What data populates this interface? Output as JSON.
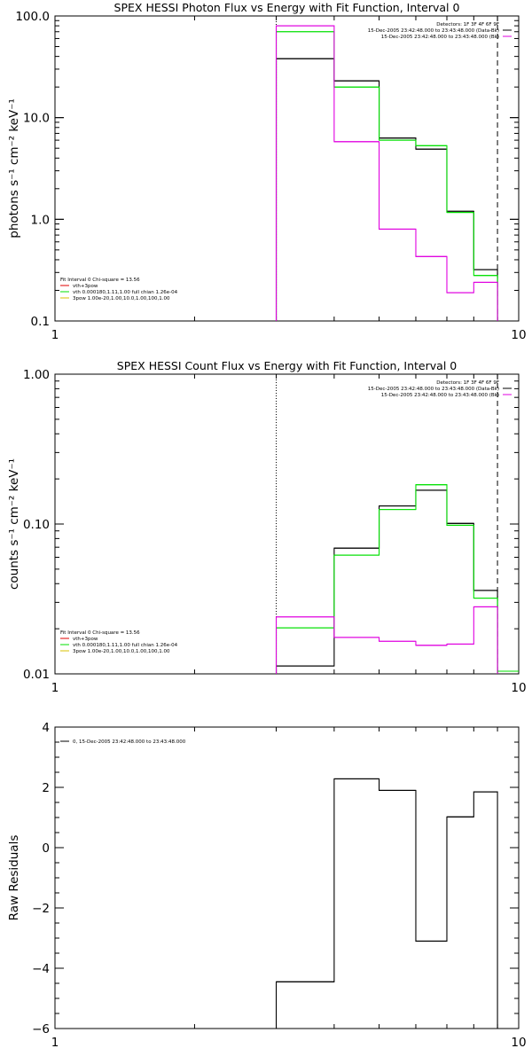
{
  "colors": {
    "data": "#000000",
    "model": "#00e000",
    "bkg": "#e000e0",
    "comp_vth": "#00e000",
    "comp_fit": "#e00000",
    "comp_pow": "#d8c000"
  },
  "chart_data": [
    {
      "type": "line",
      "title": "SPEX HESSI Photon Flux vs Energy with Fit Function, Interval 0",
      "xlabel": "",
      "ylabel": "photons s⁻¹ cm⁻² keV⁻¹",
      "xscale": "log",
      "yscale": "log",
      "xlim": [
        1,
        10
      ],
      "ylim": [
        0.1,
        100
      ],
      "x_ticks": [
        "1",
        "10"
      ],
      "y_ticks": [
        "0.1",
        "1.0",
        "10.0",
        "100.0"
      ],
      "edges": [
        3,
        4,
        5,
        6,
        7,
        8,
        9
      ],
      "energy_markers": [
        {
          "x": 3,
          "style": "dotted"
        },
        {
          "x": 9,
          "style": "dashed"
        }
      ],
      "series": [
        {
          "key": "data",
          "values": [
            38,
            23,
            6.3,
            4.9,
            1.2,
            0.32
          ]
        },
        {
          "key": "model",
          "values": [
            70,
            20,
            6.0,
            5.3,
            1.17,
            0.28
          ]
        },
        {
          "key": "bkg",
          "values": [
            80,
            5.8,
            0.8,
            0.43,
            0.19,
            0.24
          ]
        }
      ],
      "legend_top_right": [
        {
          "text": "Detectors: 1F 3F 4F 6F 9F",
          "color": ""
        },
        {
          "text": "15-Dec-2005 23:42:48.000 to 23:43:48.000 (Data-Bk)",
          "color": "data"
        },
        {
          "text": "15-Dec-2005 23:42:48.000 to 23:43:48.000 (Bk)",
          "color": "bkg"
        }
      ],
      "legend_bottom_left": [
        {
          "text": "Fit Interval 0   Chi-square = 13.56",
          "color": ""
        },
        {
          "text": "vth+3pow",
          "color": "comp_fit"
        },
        {
          "text": "vth 0.000180,1.11,1.00  full chian 1.26e-04",
          "color": "comp_vth"
        },
        {
          "text": "3pow 1.00e-20,1.00,10.0,1.00,100,1.00",
          "color": "comp_pow"
        }
      ]
    },
    {
      "type": "line",
      "title": "SPEX HESSI Count Flux vs Energy with Fit Function, Interval 0",
      "xlabel": "",
      "ylabel": "counts s⁻¹ cm⁻² keV⁻¹",
      "xscale": "log",
      "yscale": "log",
      "xlim": [
        1,
        10
      ],
      "ylim": [
        0.01,
        1
      ],
      "x_ticks": [
        "1",
        "10"
      ],
      "y_ticks": [
        "0.01",
        "0.10",
        "1.00"
      ],
      "edges": [
        3,
        4,
        5,
        6,
        7,
        8,
        9
      ],
      "energy_markers": [
        {
          "x": 3,
          "style": "dotted"
        },
        {
          "x": 9,
          "style": "dashed"
        }
      ],
      "series": [
        {
          "key": "data",
          "values": [
            0.0113,
            0.069,
            0.132,
            0.168,
            0.101,
            0.036
          ]
        },
        {
          "key": "model",
          "values": [
            0.0203,
            0.062,
            0.125,
            0.183,
            0.098,
            0.032
          ]
        },
        {
          "key": "bkg",
          "values": [
            0.024,
            0.0175,
            0.0165,
            0.0155,
            0.0158,
            0.028
          ]
        }
      ],
      "legend_top_right": [
        {
          "text": "Detectors: 1F 3F 4F 6F 9F",
          "color": ""
        },
        {
          "text": "15-Dec-2005 23:42:48.000 to 23:43:48.000 (Data-Bk)",
          "color": "data"
        },
        {
          "text": "15-Dec-2005 23:42:48.000 to 23:43:48.000 (Bk)",
          "color": "bkg"
        }
      ],
      "legend_bottom_left": [
        {
          "text": "Fit Interval 0   Chi-square = 13.56",
          "color": ""
        },
        {
          "text": "vth+3pow",
          "color": "comp_fit"
        },
        {
          "text": "vth 0.000180,1.11,1.00  full chian 1.26e-04",
          "color": "comp_vth"
        },
        {
          "text": "3pow 1.00e-20,1.00,10.0,1.00,100,1.00",
          "color": "comp_pow"
        }
      ]
    },
    {
      "type": "line",
      "title": "",
      "xlabel": "",
      "ylabel": "Raw Residuals",
      "xscale": "log",
      "yscale": "linear",
      "xlim": [
        1,
        10
      ],
      "ylim": [
        -6,
        4
      ],
      "x_ticks": [
        "1",
        "10"
      ],
      "y_ticks": [
        "−6",
        "−4",
        "−2",
        "0",
        "2",
        "4"
      ],
      "edges": [
        3,
        4,
        5,
        6,
        7,
        8,
        9
      ],
      "series": [
        {
          "key": "data",
          "values": [
            -4.45,
            2.28,
            1.9,
            -3.1,
            1.02,
            1.85
          ]
        }
      ],
      "legend": [
        {
          "text": "0, 15-Dec-2005 23:42:48.000 to 23:43:48.000",
          "color": "data"
        }
      ]
    }
  ]
}
